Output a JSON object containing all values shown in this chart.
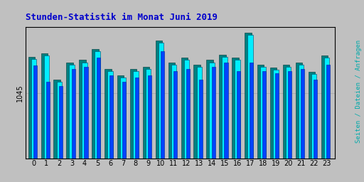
{
  "title": "Stunden-Statistik im Monat Juni 2019",
  "title_color": "#0000cc",
  "title_fontsize": 9,
  "ylabel_right": "Seiten / Dateien / Anfragen",
  "ylabel_right_color": "#00aaaa",
  "background_color": "#c0c0c0",
  "plot_bg_color": "#c0c0c0",
  "hours": [
    0,
    1,
    2,
    3,
    4,
    5,
    6,
    7,
    8,
    9,
    10,
    11,
    12,
    13,
    14,
    15,
    16,
    17,
    18,
    19,
    20,
    21,
    22,
    23
  ],
  "bar_width": 0.35,
  "series": {
    "pages": {
      "color": "#008080",
      "values": [
        93,
        96,
        72,
        88,
        90,
        100,
        82,
        76,
        82,
        84,
        108,
        88,
        92,
        86,
        90,
        95,
        92,
        115,
        86,
        83,
        86,
        88,
        79,
        94
      ]
    },
    "files": {
      "color": "#00eeff",
      "values": [
        91,
        94,
        70,
        86,
        88,
        98,
        80,
        74,
        80,
        82,
        106,
        86,
        90,
        84,
        88,
        93,
        90,
        113,
        84,
        81,
        84,
        86,
        77,
        92
      ]
    },
    "requests": {
      "color": "#0044ff",
      "values": [
        85,
        70,
        66,
        82,
        84,
        92,
        76,
        70,
        74,
        76,
        98,
        80,
        82,
        72,
        84,
        88,
        80,
        88,
        80,
        78,
        80,
        82,
        72,
        86
      ]
    }
  },
  "ylim_min": 0,
  "ylim_max": 120,
  "ytick_val": 60,
  "ytick_label": "1045",
  "grid_color": "#aaaaaa",
  "border_color": "#000000",
  "figsize": [
    5.12,
    2.56
  ],
  "dpi": 100
}
